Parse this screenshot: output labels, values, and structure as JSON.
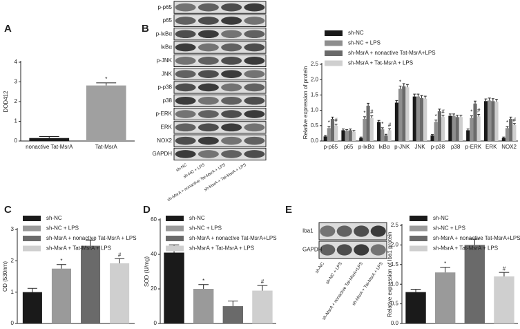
{
  "chart_data": [
    {
      "type": "bar",
      "panel": "A",
      "y_label": "DOD412",
      "categories": [
        "nonactive Tat-MsrA",
        "Tat-MsrA"
      ],
      "values": [
        0.15,
        2.82
      ],
      "errors": [
        0.08,
        0.13
      ],
      "sig": [
        null,
        "*"
      ],
      "colors": [
        "#1a1a1a",
        "#a0a0a0"
      ],
      "ylim": [
        0,
        4
      ],
      "yticks": [
        0,
        1,
        2,
        3,
        4
      ]
    },
    {
      "type": "bar",
      "y_label": "Relative expression of protein",
      "categories": [
        "p-p65",
        "p65",
        "p-IκBα",
        "IκBα",
        "p-JNK",
        "JNK",
        "p-p38",
        "p38",
        "p-ERK",
        "ERK",
        "NOX2"
      ],
      "series": [
        {
          "name": "sh-NC",
          "color": "#1a1a1a",
          "values": [
            0.15,
            0.35,
            0.1,
            0.62,
            1.25,
            1.45,
            0.18,
            0.82,
            0.35,
            1.3,
            0.1
          ],
          "errors": [
            0.03,
            0.04,
            0.03,
            0.05,
            0.07,
            0.08,
            0.03,
            0.06,
            0.04,
            0.07,
            0.03
          ]
        },
        {
          "name": "sh-NC + LPS",
          "color": "#8e8e8e",
          "values": [
            0.42,
            0.33,
            0.72,
            0.38,
            1.7,
            1.45,
            0.62,
            0.82,
            0.75,
            1.32,
            0.42
          ],
          "errors": [
            0.05,
            0.04,
            0.07,
            0.05,
            0.09,
            0.08,
            0.06,
            0.06,
            0.07,
            0.08,
            0.05
          ],
          "sig": [
            "*",
            null,
            "*",
            "*",
            "*",
            null,
            "*",
            null,
            "*",
            null,
            "*"
          ]
        },
        {
          "name": "sh-MsrA + nonactive Tat-MsrA+LPS",
          "color": "#6a6a6a",
          "values": [
            0.72,
            0.35,
            1.15,
            0.18,
            1.78,
            1.4,
            0.97,
            0.78,
            1.22,
            1.3,
            0.72
          ],
          "errors": [
            0.06,
            0.04,
            0.08,
            0.04,
            0.09,
            0.08,
            0.07,
            0.06,
            0.08,
            0.08,
            0.06
          ]
        },
        {
          "name": "sh-MsrA + Tat-MsrA + LPS",
          "color": "#cfcfcf",
          "values": [
            0.5,
            0.3,
            0.75,
            0.35,
            1.75,
            1.38,
            0.78,
            0.78,
            0.8,
            1.28,
            0.52
          ],
          "errors": [
            0.05,
            0.04,
            0.07,
            0.05,
            0.09,
            0.08,
            0.06,
            0.06,
            0.07,
            0.08,
            0.05
          ],
          "sig": [
            "#",
            null,
            "#",
            "#",
            null,
            null,
            "#",
            null,
            "#",
            null,
            "#"
          ]
        }
      ],
      "ylim": [
        0,
        2.5
      ],
      "yticks": [
        {
          "value": 0,
          "label": "0.0"
        },
        {
          "value": 0.5,
          "label": "0.5"
        },
        {
          "value": 1,
          "label": "1.0"
        },
        {
          "value": 1.5,
          "label": "1.5"
        },
        {
          "value": 2,
          "label": "2.0"
        },
        {
          "value": 2.5,
          "label": "2.5"
        }
      ]
    },
    {
      "type": "bar",
      "panel": "C",
      "y_label": "OD (530nm)",
      "series": [
        {
          "name": "sh-NC",
          "color": "#1a1a1a",
          "values": [
            1.0
          ],
          "errors": [
            0.12
          ]
        },
        {
          "name": "sh-NC + LPS",
          "color": "#9a9a9a",
          "values": [
            1.75
          ],
          "errors": [
            0.13
          ],
          "sig": [
            "*"
          ]
        },
        {
          "name": "sh-MsrA + nonactive Tat-MsrA + LPS",
          "color": "#6a6a6a",
          "values": [
            2.48
          ],
          "errors": [
            0.18
          ]
        },
        {
          "name": "sh-MsrA + Tat-MsrA + LPS",
          "color": "#cfcfcf",
          "values": [
            1.92
          ],
          "errors": [
            0.15
          ],
          "sig": [
            "#"
          ]
        }
      ],
      "ylim": [
        0,
        3
      ],
      "yticks": [
        0,
        1,
        2,
        3
      ]
    },
    {
      "type": "bar",
      "panel": "D",
      "y_label": "SOD (U/mg)",
      "series": [
        {
          "name": "sh-NC",
          "color": "#1a1a1a",
          "values": [
            41
          ],
          "errors": [
            4.5
          ]
        },
        {
          "name": "sh-NC + LPS",
          "color": "#9a9a9a",
          "values": [
            20
          ],
          "errors": [
            2.5
          ],
          "sig": [
            "*"
          ]
        },
        {
          "name": "sh-MsrA + nonactive Tat-MsrA+LPS",
          "color": "#6a6a6a",
          "values": [
            10
          ],
          "errors": [
            3
          ]
        },
        {
          "name": "sh-MsrA + Tat-MsrA + LPS",
          "color": "#cfcfcf",
          "values": [
            19
          ],
          "errors": [
            3
          ],
          "sig": [
            "#"
          ]
        }
      ],
      "ylim": [
        0,
        60
      ],
      "yticks": [
        0,
        20,
        40,
        60
      ]
    },
    {
      "type": "bar",
      "y_label": "Relative expression of Iba1 protein",
      "series": [
        {
          "name": "sh-NC",
          "color": "#1a1a1a",
          "values": [
            0.8
          ],
          "errors": [
            0.07
          ]
        },
        {
          "name": "sh-NC + LPS",
          "color": "#9a9a9a",
          "values": [
            1.3
          ],
          "errors": [
            0.13
          ],
          "sig": [
            "*"
          ]
        },
        {
          "name": "sh-MsrA + nonactive Tat-MsrA+LPS",
          "color": "#6a6a6a",
          "values": [
            2.0
          ],
          "errors": [
            0.15
          ]
        },
        {
          "name": "sh-MsrA + Tat-MsrA + LPS",
          "color": "#cfcfcf",
          "values": [
            1.2
          ],
          "errors": [
            0.1
          ],
          "sig": [
            "#"
          ]
        }
      ],
      "ylim": [
        0,
        2.5
      ],
      "yticks": [
        {
          "value": 0,
          "label": "0.0"
        },
        {
          "value": 0.5,
          "label": "0.5"
        },
        {
          "value": 1,
          "label": "1.0"
        },
        {
          "value": 1.5,
          "label": "1.5"
        },
        {
          "value": 2,
          "label": "2.0"
        },
        {
          "value": 2.5,
          "label": "2.5"
        }
      ]
    }
  ],
  "blots": [
    {
      "panel": "B",
      "rows": [
        "p-p65",
        "p65",
        "p-IκBα",
        "IκBα",
        "p-JNK",
        "JNK",
        "p-p38",
        "p38",
        "p-ERK",
        "ERK",
        "NOX2",
        "GAPDH"
      ],
      "columns": [
        "sh-NC",
        "sh-NC + LPS",
        "sh-MsrA + nonactive Tat-MsrA + LPS",
        "sh-MsrA + Tat-MsrA + LPS"
      ]
    },
    {
      "panel": "E",
      "rows": [
        "Iba1",
        "GAPDH"
      ],
      "columns": [
        "sh-NC",
        "sh-NC + LPS",
        "sh-MsrA + nonactive Tat-MsrA+LPS",
        "sh-MsrA + Tat-MsrA + LPS"
      ]
    }
  ]
}
